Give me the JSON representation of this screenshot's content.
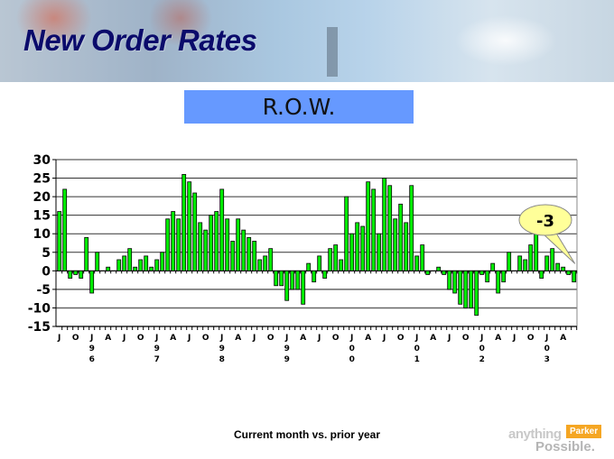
{
  "header": {
    "title": "New Order Rates",
    "subtitle": "R.O.W."
  },
  "caption": "Current month vs. prior year",
  "logo": {
    "text_1": "anything",
    "text_2": "Parker",
    "text_3": "Possible."
  },
  "colors": {
    "bar": "#00ee00",
    "bar_border": "#000000",
    "subtitle_box": "#6699ff",
    "title": "#0b0b6b",
    "callout": "#ffff99"
  },
  "chart_data": {
    "type": "bar",
    "title": "",
    "xlabel": "",
    "ylabel": "",
    "ylim": [
      -15,
      30
    ],
    "yticks": [
      30,
      25,
      20,
      15,
      10,
      5,
      0,
      -5,
      -10,
      -15
    ],
    "grid": true,
    "categories": [
      "1995-07",
      "1995-08",
      "1995-09",
      "1995-10",
      "1995-11",
      "1995-12",
      "1996-01",
      "1996-02",
      "1996-03",
      "1996-04",
      "1996-05",
      "1996-06",
      "1996-07",
      "1996-08",
      "1996-09",
      "1996-10",
      "1996-11",
      "1996-12",
      "1997-01",
      "1997-02",
      "1997-03",
      "1997-04",
      "1997-05",
      "1997-06",
      "1997-07",
      "1997-08",
      "1997-09",
      "1997-10",
      "1997-11",
      "1997-12",
      "1998-01",
      "1998-02",
      "1998-03",
      "1998-04",
      "1998-05",
      "1998-06",
      "1998-07",
      "1998-08",
      "1998-09",
      "1998-10",
      "1998-11",
      "1998-12",
      "1999-01",
      "1999-02",
      "1999-03",
      "1999-04",
      "1999-05",
      "1999-06",
      "1999-07",
      "1999-08",
      "1999-09",
      "1999-10",
      "1999-11",
      "1999-12",
      "2000-01",
      "2000-02",
      "2000-03",
      "2000-04",
      "2000-05",
      "2000-06",
      "2000-07",
      "2000-08",
      "2000-09",
      "2000-10",
      "2000-11",
      "2000-12",
      "2001-01",
      "2001-02",
      "2001-03",
      "2001-04",
      "2001-05",
      "2001-06",
      "2001-07",
      "2001-08",
      "2001-09",
      "2001-10",
      "2001-11",
      "2001-12",
      "2002-01",
      "2002-02",
      "2002-03",
      "2002-04",
      "2002-05",
      "2002-06",
      "2002-07",
      "2002-08",
      "2002-09",
      "2002-10",
      "2002-11",
      "2002-12",
      "2003-01",
      "2003-02",
      "2003-03",
      "2003-04",
      "2003-05",
      "2003-06"
    ],
    "values": [
      16,
      22,
      -2,
      -1,
      -2,
      9,
      -6,
      5,
      0,
      1,
      0,
      3,
      4,
      6,
      1,
      3,
      4,
      1,
      3,
      5,
      14,
      16,
      14,
      26,
      24,
      21,
      13,
      11,
      15,
      16,
      22,
      14,
      8,
      14,
      11,
      9,
      8,
      3,
      4,
      6,
      -4,
      -4,
      -8,
      -5,
      -5,
      -9,
      2,
      -3,
      4,
      -2,
      6,
      7,
      3,
      20,
      10,
      13,
      12,
      24,
      22,
      10,
      25,
      23,
      14,
      18,
      13,
      23,
      4,
      7,
      -1,
      0,
      1,
      -1,
      -5,
      -6,
      -9,
      -10,
      -10,
      -12,
      -1,
      -3,
      2,
      -6,
      -3,
      5,
      0,
      4,
      3,
      7,
      10,
      -2,
      4,
      6,
      2,
      1,
      -1,
      -3
    ],
    "month_tick_labels": [
      "J",
      "O",
      "J",
      "A",
      "J",
      "O",
      "J",
      "A",
      "J",
      "O",
      "J",
      "A",
      "J",
      "O",
      "J",
      "A",
      "J",
      "O",
      "J",
      "A",
      "J",
      "O",
      "J",
      "A",
      "J",
      "O",
      "J",
      "A",
      "J",
      "O",
      "J",
      "A"
    ],
    "year_tick_labels": [
      [
        "9",
        "6"
      ],
      [
        "9",
        "7"
      ],
      [
        "9",
        "8"
      ],
      [
        "9",
        "9"
      ],
      [
        "0",
        "0"
      ],
      [
        "0",
        "1"
      ],
      [
        "0",
        "2"
      ],
      [
        "0",
        "3"
      ]
    ],
    "annotation": {
      "text": "-3",
      "points_to": "2003-06"
    }
  }
}
